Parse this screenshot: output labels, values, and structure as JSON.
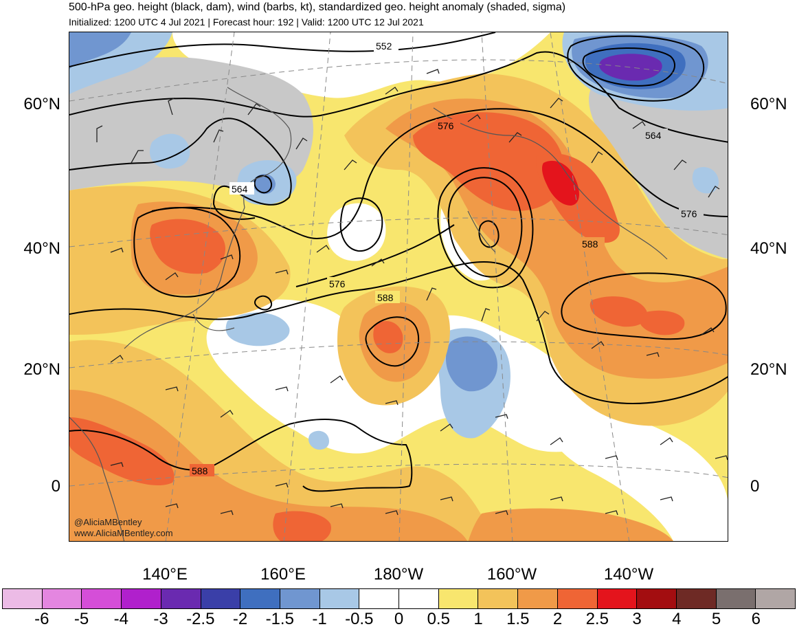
{
  "header": {
    "title": "500-hPa geo. height (black, dam), wind (barbs, kt), standardized geo. height anomaly (shaded, sigma)",
    "subtitle": "Initialized: 1200 UTC 4 Jul 2021 | Forecast hour: 192 | Valid: 1200 UTC 12 Jul 2021"
  },
  "lat_labels": [
    "60°N",
    "40°N",
    "20°N",
    "0"
  ],
  "lon_labels": [
    "140°E",
    "160°E",
    "180°W",
    "160°W",
    "140°W"
  ],
  "contour_labels": [
    "552",
    "576",
    "564",
    "564",
    "576",
    "576",
    "588",
    "588",
    "588"
  ],
  "colorbar": {
    "labels": [
      "-6",
      "-5",
      "-4",
      "-3",
      "-2.5",
      "-2",
      "-1.5",
      "-1",
      "-0.5",
      "0",
      "0.5",
      "1",
      "1.5",
      "2",
      "2.5",
      "3",
      "4",
      "5",
      "6"
    ],
    "colors": [
      "#ecbbe6",
      "#e486e0",
      "#d54ed8",
      "#b020cc",
      "#6a2ab0",
      "#3a3fa8",
      "#3f6fbf",
      "#7096d0",
      "#a8c8e6",
      "#ffffff",
      "#ffffff",
      "#f8e66e",
      "#f3c35a",
      "#f09a48",
      "#ef6535",
      "#e4141c",
      "#a30d10",
      "#6e2a25",
      "#7a6f6e",
      "#b0a6a5"
    ]
  },
  "credits": {
    "handle": "@AliciaMBentley",
    "site": "www.AliciaMBentley.com"
  }
}
